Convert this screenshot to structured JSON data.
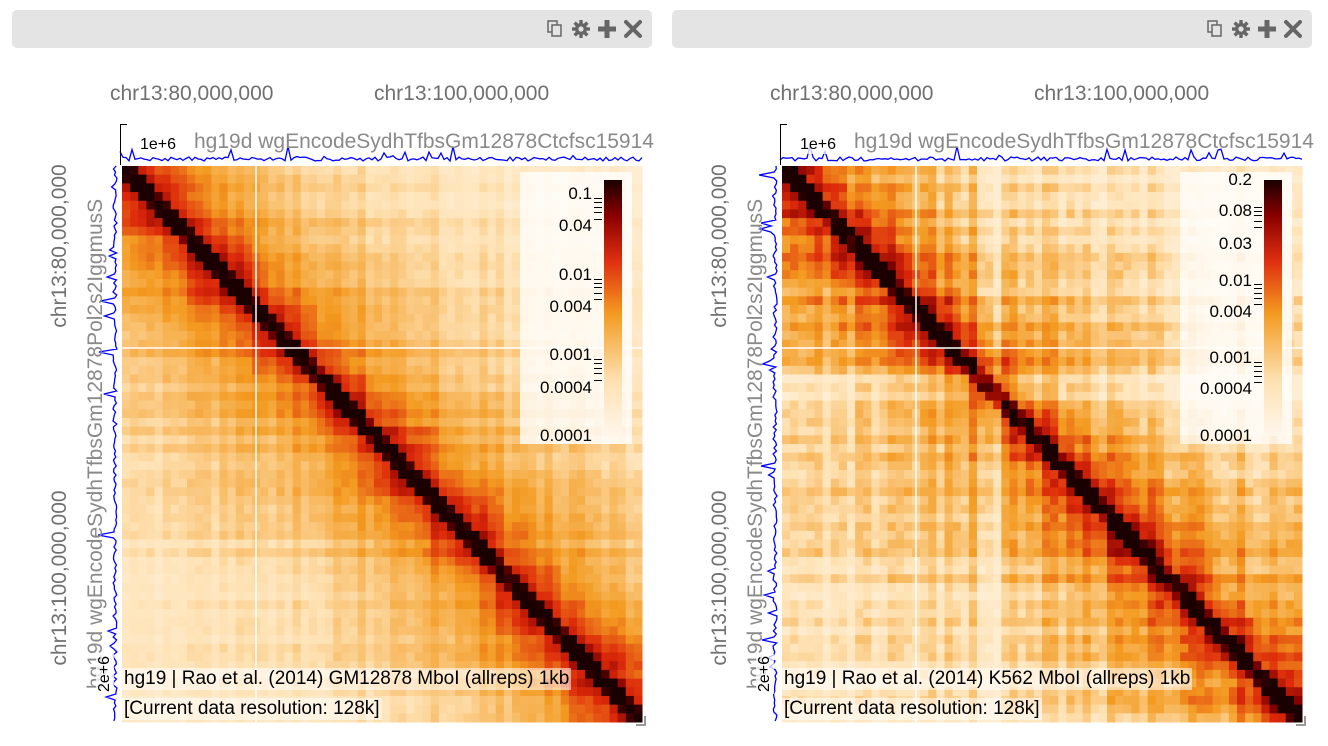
{
  "views": [
    {
      "id": "gm12878",
      "header": {
        "icons": [
          "copy-icon",
          "gear-icon",
          "plus-icon",
          "close-icon"
        ]
      },
      "top_axis": {
        "ticks": [
          "chr13:80,000,000",
          "chr13:100,000,000"
        ]
      },
      "left_axis": {
        "ticks": [
          "chr13:80,000,000",
          "chr13:100,000,000"
        ]
      },
      "top_track": {
        "name": "hg19d wgEncodeSydhTfbsGm12878Ctcfsc15914",
        "scale": "1e+6",
        "color": "#0000ff"
      },
      "left_track": {
        "name": "hg19d wgEncodeSydhTfbsGm12878Pol2s2IggmusS",
        "scale": "2e+6",
        "color": "#0000ff"
      },
      "heatmap": {
        "name": "hg19 | Rao et al. (2014) GM12878 MboI (allreps) 1kb",
        "resolution": "[Current data resolution: 128k]"
      },
      "colorbar": {
        "labels": [
          "0.1",
          "0.04",
          "0.01",
          "0.004",
          "0.001",
          "0.0004",
          "0.0001"
        ],
        "min": 0.0001,
        "max": 0.15
      },
      "colors": {
        "low": "#fff7ec",
        "mid": "#f39a20",
        "high": "#1a0000"
      }
    },
    {
      "id": "k562",
      "header": {
        "icons": [
          "copy-icon",
          "gear-icon",
          "plus-icon",
          "close-icon"
        ]
      },
      "top_axis": {
        "ticks": [
          "chr13:80,000,000",
          "chr13:100,000,000"
        ]
      },
      "left_axis": {
        "ticks": [
          "chr13:80,000,000",
          "chr13:100,000,000"
        ]
      },
      "top_track": {
        "name": "hg19d wgEncodeSydhTfbsGm12878Ctcfsc15914",
        "scale": "1e+6",
        "color": "#0000ff"
      },
      "left_track": {
        "name": "hg19d wgEncodeSydhTfbsGm12878Pol2s2IggmusS",
        "scale": "2e+6",
        "color": "#0000ff"
      },
      "heatmap": {
        "name": "hg19 | Rao et al. (2014) K562 MboI (allreps) 1kb",
        "resolution": "[Current data resolution: 128k]"
      },
      "colorbar": {
        "labels": [
          "0.2",
          "0.08",
          "0.03",
          "0.01",
          "0.004",
          "0.001",
          "0.0004",
          "0.0001"
        ],
        "min": 0.0001,
        "max": 0.2
      },
      "colors": {
        "low": "#fff7ec",
        "mid": "#f39a20",
        "high": "#1a0000"
      }
    }
  ]
}
